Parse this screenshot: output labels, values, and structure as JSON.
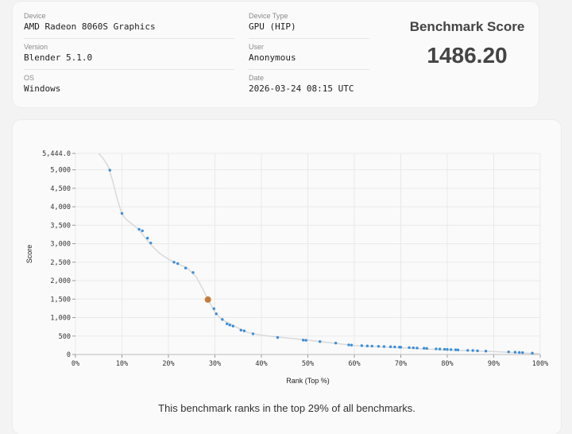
{
  "info": {
    "device_label": "Device",
    "device_value": "AMD Radeon 8060S Graphics",
    "version_label": "Version",
    "version_value": "Blender 5.1.0",
    "os_label": "OS",
    "os_value": "Windows",
    "device_type_label": "Device Type",
    "device_type_value": "GPU (HIP)",
    "user_label": "User",
    "user_value": "Anonymous",
    "date_label": "Date",
    "date_value": "2026-03-24 08:15 UTC"
  },
  "score": {
    "title": "Benchmark Score",
    "value": "1486.20"
  },
  "caption": "This benchmark ranks in the top 29% of all benchmarks.",
  "colors": {
    "point": "#3d8fd9",
    "highlight": "#c97b3a",
    "curve": "#d9d9d9",
    "grid": "#e9e9e9"
  },
  "chart_data": {
    "type": "scatter",
    "xlabel": "Rank (Top %)",
    "ylabel": "Score",
    "xlim": [
      0,
      100
    ],
    "ylim": [
      0,
      5444
    ],
    "x_ticks": [
      "0%",
      "10%",
      "20%",
      "30%",
      "40%",
      "50%",
      "60%",
      "70%",
      "80%",
      "90%",
      "100%"
    ],
    "y_ticks": [
      "0",
      "500",
      "1,000",
      "1,500",
      "2,000",
      "2,500",
      "3,000",
      "3,500",
      "4,000",
      "4,500",
      "5,000",
      "5,444.0"
    ],
    "y_tick_values": [
      0,
      500,
      1000,
      1500,
      2000,
      2500,
      3000,
      3500,
      4000,
      4500,
      5000,
      5444
    ],
    "grid": true,
    "curve": [
      {
        "x": 5,
        "y": 5444
      },
      {
        "x": 6,
        "y": 5300
      },
      {
        "x": 7,
        "y": 5100
      },
      {
        "x": 8,
        "y": 4700
      },
      {
        "x": 9,
        "y": 4200
      },
      {
        "x": 10,
        "y": 3800
      },
      {
        "x": 11,
        "y": 3650
      },
      {
        "x": 13.5,
        "y": 3400
      },
      {
        "x": 16,
        "y": 3000
      },
      {
        "x": 18,
        "y": 2750
      },
      {
        "x": 20,
        "y": 2580
      },
      {
        "x": 22,
        "y": 2450
      },
      {
        "x": 24,
        "y": 2350
      },
      {
        "x": 26,
        "y": 2100
      },
      {
        "x": 27.5,
        "y": 1750
      },
      {
        "x": 28.5,
        "y": 1486
      },
      {
        "x": 30,
        "y": 1150
      },
      {
        "x": 31.5,
        "y": 950
      },
      {
        "x": 34,
        "y": 780
      },
      {
        "x": 37,
        "y": 600
      },
      {
        "x": 40,
        "y": 520
      },
      {
        "x": 50,
        "y": 390
      },
      {
        "x": 60,
        "y": 240
      },
      {
        "x": 70,
        "y": 180
      },
      {
        "x": 80,
        "y": 120
      },
      {
        "x": 90,
        "y": 80
      },
      {
        "x": 100,
        "y": 20
      }
    ],
    "series": [
      {
        "name": "",
        "points": [
          {
            "x": 7.4,
            "y": 4990
          },
          {
            "x": 10,
            "y": 3820
          },
          {
            "x": 13.7,
            "y": 3390
          },
          {
            "x": 14.4,
            "y": 3350
          },
          {
            "x": 15.5,
            "y": 3150
          },
          {
            "x": 16.2,
            "y": 3020
          },
          {
            "x": 21.2,
            "y": 2500
          },
          {
            "x": 22,
            "y": 2460
          },
          {
            "x": 23.7,
            "y": 2340
          },
          {
            "x": 25.3,
            "y": 2220
          },
          {
            "x": 29.8,
            "y": 1240
          },
          {
            "x": 30.3,
            "y": 1100
          },
          {
            "x": 31.6,
            "y": 950
          },
          {
            "x": 32.6,
            "y": 830
          },
          {
            "x": 33.2,
            "y": 800
          },
          {
            "x": 33.9,
            "y": 770
          },
          {
            "x": 35.6,
            "y": 660
          },
          {
            "x": 36.3,
            "y": 640
          },
          {
            "x": 38.2,
            "y": 560
          },
          {
            "x": 43.5,
            "y": 460
          },
          {
            "x": 49,
            "y": 390
          },
          {
            "x": 49.6,
            "y": 385
          },
          {
            "x": 52.6,
            "y": 350
          },
          {
            "x": 56,
            "y": 310
          },
          {
            "x": 58.8,
            "y": 260
          },
          {
            "x": 59.4,
            "y": 255
          },
          {
            "x": 61.6,
            "y": 240
          },
          {
            "x": 62.8,
            "y": 232
          },
          {
            "x": 63.8,
            "y": 228
          },
          {
            "x": 65.2,
            "y": 222
          },
          {
            "x": 66.4,
            "y": 216
          },
          {
            "x": 67.8,
            "y": 210
          },
          {
            "x": 68.7,
            "y": 205
          },
          {
            "x": 69.7,
            "y": 200
          },
          {
            "x": 70,
            "y": 198
          },
          {
            "x": 71.8,
            "y": 188
          },
          {
            "x": 72.7,
            "y": 182
          },
          {
            "x": 73.5,
            "y": 176
          },
          {
            "x": 75,
            "y": 170
          },
          {
            "x": 75.6,
            "y": 166
          },
          {
            "x": 77.6,
            "y": 152
          },
          {
            "x": 78.4,
            "y": 148
          },
          {
            "x": 79.4,
            "y": 142
          },
          {
            "x": 80,
            "y": 138
          },
          {
            "x": 80.8,
            "y": 134
          },
          {
            "x": 81.8,
            "y": 128
          },
          {
            "x": 82.3,
            "y": 124
          },
          {
            "x": 84.4,
            "y": 112
          },
          {
            "x": 85.5,
            "y": 108
          },
          {
            "x": 86.5,
            "y": 100
          },
          {
            "x": 88.3,
            "y": 92
          },
          {
            "x": 93.2,
            "y": 72
          },
          {
            "x": 94.6,
            "y": 62
          },
          {
            "x": 95.5,
            "y": 56
          },
          {
            "x": 96.2,
            "y": 52
          },
          {
            "x": 98.3,
            "y": 38
          }
        ]
      }
    ],
    "highlight": {
      "x": 28.5,
      "y": 1486.2
    }
  }
}
